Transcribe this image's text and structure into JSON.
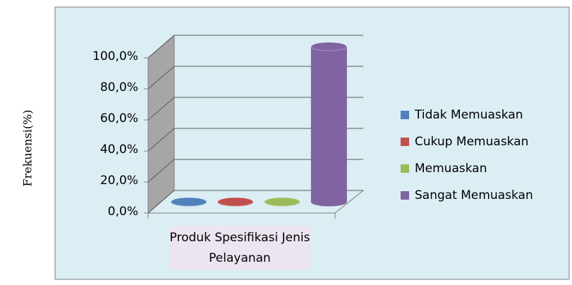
{
  "chart_data": {
    "type": "bar3d",
    "y_axis_label": "Frekuensi(%)",
    "categories": [
      "Produk Spesifikasi Jenis Pelayanan"
    ],
    "series": [
      {
        "name": "Tidak Memuaskan",
        "color": "#4f81bd",
        "values": [
          0
        ]
      },
      {
        "name": "Cukup Memuaskan",
        "color": "#c0504d",
        "values": [
          0
        ]
      },
      {
        "name": "Memuaskan",
        "color": "#9bbb59",
        "values": [
          0
        ]
      },
      {
        "name": "Sangat Memuaskan",
        "color": "#8064a2",
        "values": [
          100
        ]
      }
    ],
    "ylim": [
      0,
      100
    ],
    "yticks": [
      {
        "value": 0,
        "label": "0,0%"
      },
      {
        "value": 20,
        "label": "20,0%"
      },
      {
        "value": 40,
        "label": "40,0%"
      },
      {
        "value": 60,
        "label": "60,0%"
      },
      {
        "value": 80,
        "label": "80,0%"
      },
      {
        "value": 100,
        "label": "100,0%"
      }
    ],
    "grid": true,
    "legend": "right"
  }
}
